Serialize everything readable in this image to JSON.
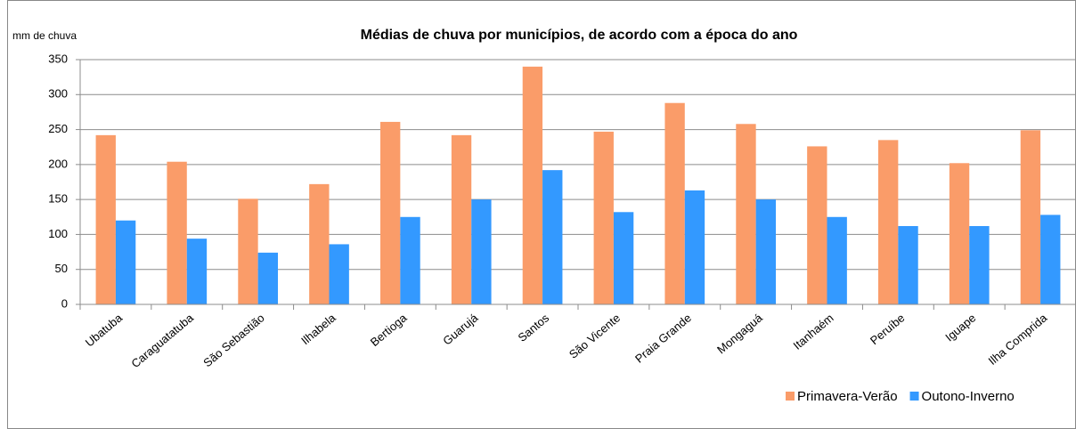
{
  "chart_data": {
    "type": "bar",
    "title": "Médias de chuva por municípios, de acordo com a época do ano",
    "y_label": "mm de chuva",
    "categories": [
      "Ubatuba",
      "Caraguatatuba",
      "São Sebastião",
      "Ilhabela",
      "Bertioga",
      "Guarujá",
      "Santos",
      "São Vicente",
      "Praia Grande",
      "Mongaguá",
      "Itanhaém",
      "Peruíbe",
      "Iguape",
      "Ilha Comprida"
    ],
    "series": [
      {
        "name": "Primavera-Verão",
        "color": "#fa9c69",
        "values": [
          242,
          204,
          151,
          172,
          261,
          242,
          340,
          247,
          288,
          258,
          226,
          235,
          202,
          249
        ]
      },
      {
        "name": "Outono-Inverno",
        "color": "#3399ff",
        "values": [
          120,
          94,
          74,
          86,
          125,
          150,
          192,
          132,
          163,
          150,
          125,
          112,
          112,
          128
        ]
      }
    ],
    "ylim": [
      0,
      350
    ],
    "yticks": [
      0,
      50,
      100,
      150,
      200,
      250,
      300,
      350
    ],
    "grid": true,
    "legend": "bottom-right"
  }
}
